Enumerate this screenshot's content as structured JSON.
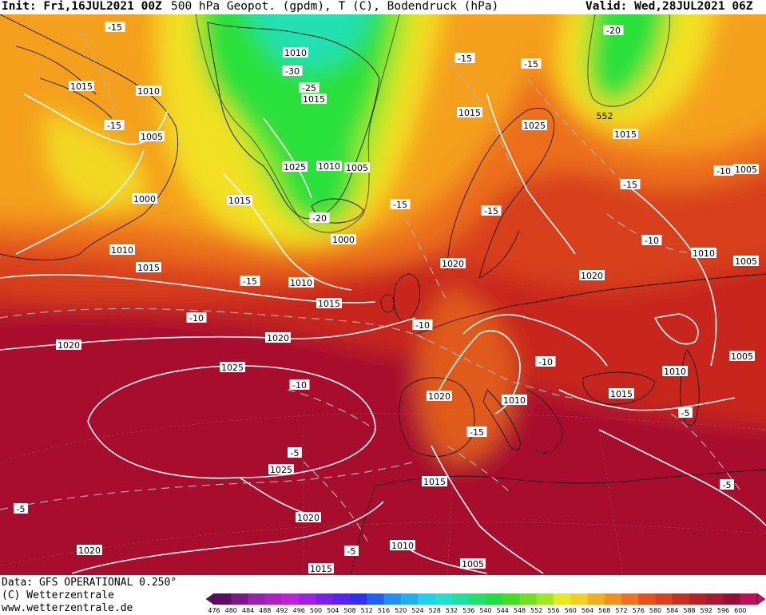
{
  "header": {
    "init": "Init: Fri,16JUL2021 00Z",
    "title": "500 hPa Geopot. (gpdm), T (C), Bodendruck (hPa)",
    "valid": "Valid: Wed,28JUL2021 06Z"
  },
  "footer": {
    "data_source": "Data: GFS OPERATIONAL 0.250°",
    "copyright": "(C) Wetterzentrale",
    "url": "www.wetterzentrale.de"
  },
  "colorbar": {
    "ticks": [
      "476",
      "480",
      "484",
      "488",
      "492",
      "496",
      "500",
      "504",
      "508",
      "512",
      "516",
      "520",
      "524",
      "528",
      "532",
      "536",
      "540",
      "544",
      "548",
      "552",
      "556",
      "560",
      "564",
      "568",
      "572",
      "576",
      "580",
      "584",
      "588",
      "592",
      "596",
      "600"
    ],
    "colors": [
      "#5a1060",
      "#7a1a8a",
      "#9a20b0",
      "#b020c8",
      "#c020d8",
      "#a020e0",
      "#7a20e8",
      "#5a20f0",
      "#3030f0",
      "#2060f0",
      "#2090f0",
      "#20b0f0",
      "#20d0f0",
      "#20e0d0",
      "#20e0a0",
      "#20e070",
      "#20e040",
      "#40e020",
      "#70e020",
      "#a0e820",
      "#e8e820",
      "#f0d020",
      "#f0b020",
      "#f09020",
      "#f07020",
      "#e85020",
      "#d84020",
      "#c83020",
      "#b82028",
      "#a81830",
      "#981030",
      "#c0105a"
    ]
  },
  "map_labels": {
    "isobars": [
      {
        "text": "1010",
        "pos": "greenland-north"
      },
      {
        "text": "1015",
        "pos": "greenland-mid"
      },
      {
        "text": "1015",
        "pos": "canada-west"
      },
      {
        "text": "1010",
        "pos": "canada-north"
      },
      {
        "text": "1005",
        "pos": "canada-center"
      },
      {
        "text": "1000",
        "pos": "canada-low"
      },
      {
        "text": "1015",
        "pos": "labrador"
      },
      {
        "text": "1010",
        "pos": "newfoundland-west"
      },
      {
        "text": "1015",
        "pos": "newfoundland"
      },
      {
        "text": "1025",
        "pos": "iceland-1"
      },
      {
        "text": "1010",
        "pos": "iceland-2"
      },
      {
        "text": "1005",
        "pos": "iceland-3"
      },
      {
        "text": "1000",
        "pos": "iceland-low"
      },
      {
        "text": "1010",
        "pos": "atlantic-north"
      },
      {
        "text": "1015",
        "pos": "atlantic-mid"
      },
      {
        "text": "1020",
        "pos": "atlantic-west"
      },
      {
        "text": "1020",
        "pos": "atlantic-center"
      },
      {
        "text": "1025",
        "pos": "azores-north"
      },
      {
        "text": "1025",
        "pos": "azores-south"
      },
      {
        "text": "1020",
        "pos": "africa-west"
      },
      {
        "text": "1020",
        "pos": "atlantic-sw"
      },
      {
        "text": "1015",
        "pos": "scandinavia-west"
      },
      {
        "text": "1025",
        "pos": "scandinavia-east"
      },
      {
        "text": "1015",
        "pos": "russia-north"
      },
      {
        "text": "1005",
        "pos": "urals"
      },
      {
        "text": "1020",
        "pos": "north-sea"
      },
      {
        "text": "1020",
        "pos": "poland"
      },
      {
        "text": "1010",
        "pos": "russia-center"
      },
      {
        "text": "1005",
        "pos": "russia-east"
      },
      {
        "text": "1020",
        "pos": "biscay"
      },
      {
        "text": "1010",
        "pos": "alps"
      },
      {
        "text": "1005",
        "pos": "caspian"
      },
      {
        "text": "1010",
        "pos": "black-sea"
      },
      {
        "text": "1015",
        "pos": "balkans"
      },
      {
        "text": "1015",
        "pos": "morocco"
      },
      {
        "text": "1010",
        "pos": "algeria"
      },
      {
        "text": "1015",
        "pos": "sahara"
      },
      {
        "text": "1005",
        "pos": "libya"
      }
    ],
    "temps": [
      {
        "text": "-15",
        "pos": "canada-nw"
      },
      {
        "text": "-15",
        "pos": "canada-mid"
      },
      {
        "text": "-30",
        "pos": "greenland-t1"
      },
      {
        "text": "-25",
        "pos": "greenland-t2"
      },
      {
        "text": "-20",
        "pos": "greenland-t3"
      },
      {
        "text": "-15",
        "pos": "iceland-t"
      },
      {
        "text": "-15",
        "pos": "atlantic-t1"
      },
      {
        "text": "-10",
        "pos": "atlantic-t2"
      },
      {
        "text": "-10",
        "pos": "azores-t"
      },
      {
        "text": "-5",
        "pos": "atlantic-t3"
      },
      {
        "text": "-5",
        "pos": "atlantic-t4"
      },
      {
        "text": "-5",
        "pos": "africa-t"
      },
      {
        "text": "-15",
        "pos": "norway-t"
      },
      {
        "text": "-15",
        "pos": "barents-t"
      },
      {
        "text": "-20",
        "pos": "kara-t"
      },
      {
        "text": "-15",
        "pos": "russia-t1"
      },
      {
        "text": "-15",
        "pos": "baltic-t"
      },
      {
        "text": "-10",
        "pos": "russia-t2"
      },
      {
        "text": "-10",
        "pos": "urals-t"
      },
      {
        "text": "-10",
        "pos": "britain-t"
      },
      {
        "text": "-10",
        "pos": "alps-t"
      },
      {
        "text": "-15",
        "pos": "spain-t"
      },
      {
        "text": "-5",
        "pos": "caspian-t"
      },
      {
        "text": "-5",
        "pos": "egypt-t"
      }
    ],
    "geopotential": [
      {
        "text": "552",
        "pos": "kara-552"
      }
    ]
  },
  "colors": {
    "deep_red": "#a8102e",
    "red": "#c8281e",
    "orange_red": "#e04a1a",
    "orange": "#ef7a1a",
    "yellow_orange": "#f4a81e",
    "yellow": "#f2e020",
    "light_green": "#a8e82a",
    "green": "#2ae03a",
    "aqua": "#20e0a0"
  }
}
